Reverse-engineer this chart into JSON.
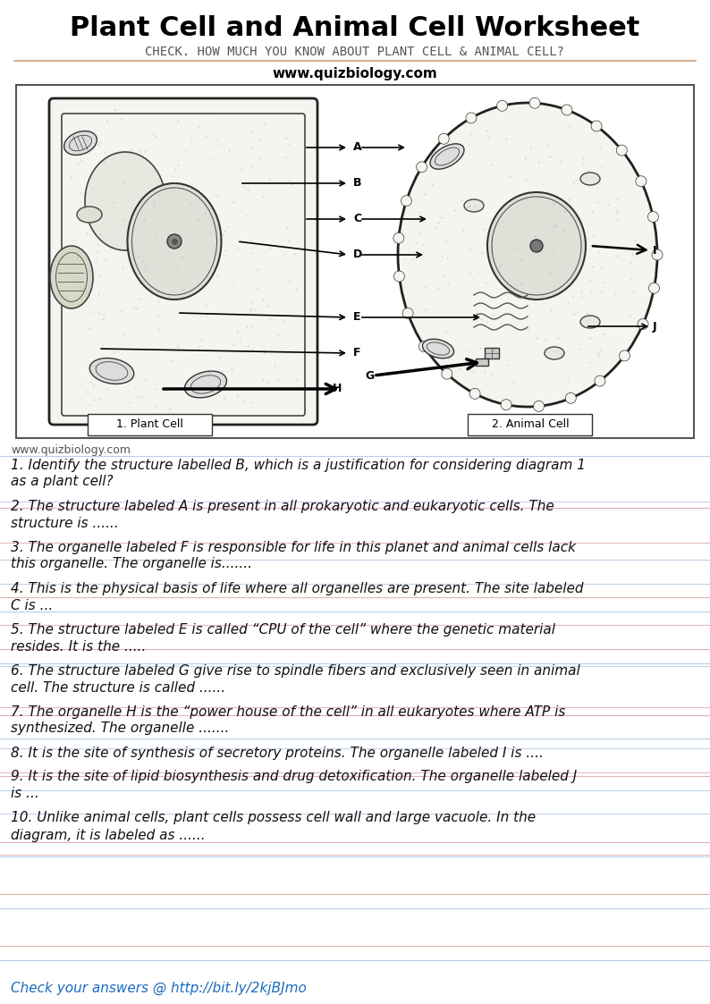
{
  "title": "Plant Cell and Animal Cell Worksheet",
  "subtitle": "CHECK. HOW MUCH YOU KNOW ABOUT PLANT CELL & ANIMAL CELL?",
  "website": "www.quizbiology.com",
  "website2": "www.quizbiology.com",
  "label1": "1. Plant Cell",
  "label2": "2. Animal Cell",
  "questions": [
    "1. Identify the structure labelled B, which is a justification for considering diagram 1 as a plant cell?",
    "2. The structure labeled A is present in all prokaryotic and eukaryotic cells. The structure is ......",
    "3. The organelle labeled F is responsible for life in this planet and animal cells lack this organelle. The organelle is.......",
    "4. This is the physical basis of life where all organelles are present. The site labeled C is ...",
    "5. The structure labeled E is called “CPU of the cell” where the genetic material resides. It is the .....",
    "6. The structure labeled G give rise to spindle fibers and exclusively seen in animal cell. The structure is called ......",
    "7. The organelle H is the “power house of the cell” in all eukaryotes where ATP is synthesized. The organelle .......",
    "8. It is the site of synthesis of secretory proteins. The organelle labeled I is ....",
    "9. It is the site of lipid biosynthesis and drug detoxification. The organelle labeled J is ...",
    "10. Unlike animal cells, plant cells possess cell wall and large vacuole. In the diagram, it is labeled as ......"
  ],
  "footer": "Check your answers @ http://bit.ly/2kjBJmo",
  "title_fontsize": 22,
  "subtitle_fontsize": 10,
  "website_fontsize": 11,
  "question_fontsize": 11,
  "footer_fontsize": 11,
  "bg_color": "#ffffff",
  "title_color": "#000000",
  "subtitle_color": "#555555",
  "question_color": "#111111",
  "footer_color": "#1a6bbf",
  "line_colors": {
    "blue": "#aac4e0",
    "red": "#d9a09a"
  }
}
